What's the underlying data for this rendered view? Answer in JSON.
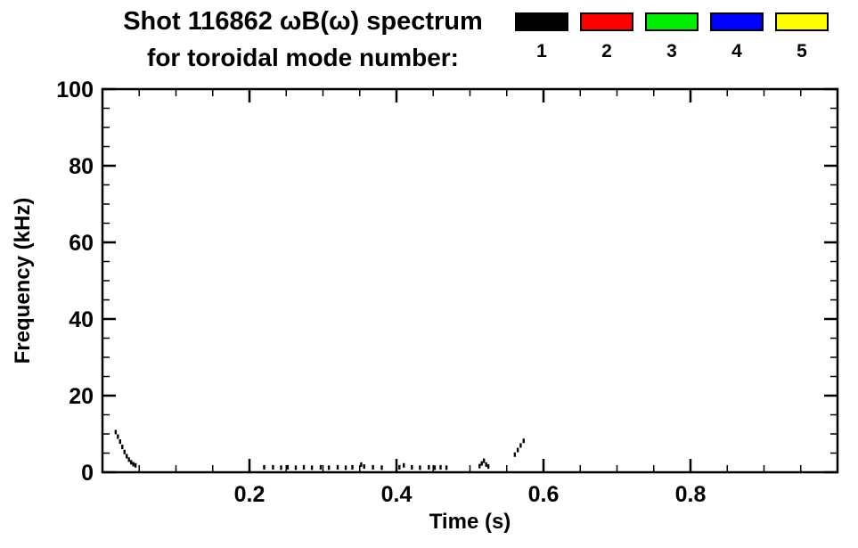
{
  "title": {
    "line1": "Shot 116862 ωB(ω) spectrum",
    "line2": "for toroidal mode number:"
  },
  "legend": {
    "entries": [
      {
        "label": "1",
        "color": "#000000"
      },
      {
        "label": "2",
        "color": "#ff0000"
      },
      {
        "label": "3",
        "color": "#00ee00"
      },
      {
        "label": "4",
        "color": "#0000ff"
      },
      {
        "label": "5",
        "color": "#ffff00"
      }
    ]
  },
  "chart_data": {
    "type": "scatter",
    "title": "Shot 116862 ωB(ω) spectrum for toroidal mode number: 1-5",
    "xlabel": "Time (s)",
    "ylabel": "Frequency (kHz)",
    "xlim": [
      0.0,
      1.0
    ],
    "ylim": [
      0,
      100
    ],
    "grid": false,
    "legend_position": "top-right",
    "x_ticks": [
      {
        "value": 0.2,
        "label": "0.2"
      },
      {
        "value": 0.4,
        "label": "0.4"
      },
      {
        "value": 0.6,
        "label": "0.6"
      },
      {
        "value": 0.8,
        "label": "0.8"
      }
    ],
    "y_ticks": [
      {
        "value": 0,
        "label": "0"
      },
      {
        "value": 20,
        "label": "20"
      },
      {
        "value": 40,
        "label": "40"
      },
      {
        "value": 60,
        "label": "60"
      },
      {
        "value": 80,
        "label": "80"
      },
      {
        "value": 100,
        "label": "100"
      }
    ],
    "x_minor_step": 0.05,
    "y_minor_step": 5,
    "series": [
      {
        "name": "mode 1",
        "color": "#000000",
        "points": [
          [
            0.018,
            10.5
          ],
          [
            0.021,
            9.3
          ],
          [
            0.024,
            8.0
          ],
          [
            0.027,
            6.6
          ],
          [
            0.03,
            5.3
          ],
          [
            0.033,
            4.2
          ],
          [
            0.036,
            3.3
          ],
          [
            0.039,
            2.6
          ],
          [
            0.042,
            2.1
          ],
          [
            0.045,
            1.8
          ],
          [
            0.22,
            1.3
          ],
          [
            0.232,
            1.3
          ],
          [
            0.243,
            1.2
          ],
          [
            0.252,
            1.3
          ],
          [
            0.263,
            1.2
          ],
          [
            0.274,
            1.3
          ],
          [
            0.285,
            1.2
          ],
          [
            0.297,
            1.3
          ],
          [
            0.308,
            1.2
          ],
          [
            0.32,
            1.3
          ],
          [
            0.331,
            1.2
          ],
          [
            0.34,
            1.3
          ],
          [
            0.352,
            2.0
          ],
          [
            0.356,
            1.5
          ],
          [
            0.368,
            1.3
          ],
          [
            0.38,
            1.2
          ],
          [
            0.404,
            1.3
          ],
          [
            0.41,
            1.8
          ],
          [
            0.421,
            1.3
          ],
          [
            0.432,
            1.2
          ],
          [
            0.444,
            1.3
          ],
          [
            0.452,
            1.2
          ],
          [
            0.46,
            1.3
          ],
          [
            0.468,
            1.2
          ],
          [
            0.513,
            1.6
          ],
          [
            0.516,
            2.3
          ],
          [
            0.519,
            3.0
          ],
          [
            0.522,
            2.0
          ],
          [
            0.525,
            1.5
          ],
          [
            0.561,
            4.6
          ],
          [
            0.565,
            5.8
          ],
          [
            0.569,
            7.0
          ],
          [
            0.573,
            8.2
          ]
        ]
      }
    ]
  }
}
